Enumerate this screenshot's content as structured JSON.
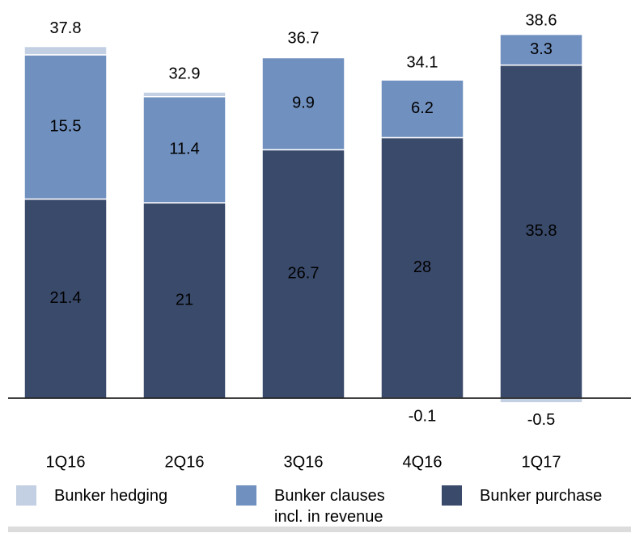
{
  "chart_data": {
    "type": "stacked_bar",
    "categories": [
      "1Q16",
      "2Q16",
      "3Q16",
      "4Q16",
      "1Q17"
    ],
    "series": [
      {
        "name": "Bunker hedging",
        "color": "#c3cfe2",
        "values": [
          0.9,
          0.5,
          0.1,
          -0.1,
          -0.5
        ],
        "value_labels": [
          null,
          null,
          null,
          "-0.1",
          "-0.5"
        ]
      },
      {
        "name": "Bunker clauses incl. in revenue",
        "color": "#7090bf",
        "values": [
          15.5,
          11.4,
          9.9,
          6.2,
          3.3
        ]
      },
      {
        "name": "Bunker purchase",
        "color": "#3a4a6b",
        "values": [
          21.4,
          21.0,
          26.7,
          28.0,
          35.8
        ]
      }
    ],
    "totals": [
      37.8,
      32.9,
      36.7,
      34.1,
      38.6
    ]
  }
}
